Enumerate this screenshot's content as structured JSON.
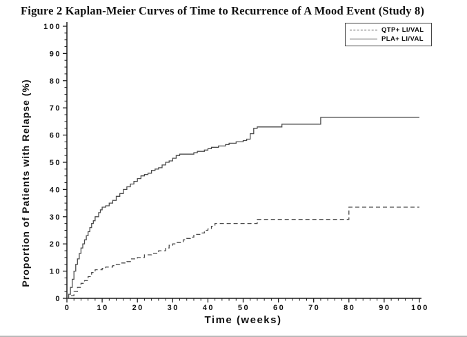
{
  "figure": {
    "title": "Figure 2 Kaplan-Meier Curves of Time to Recurrence of A Mood Event (Study 8)"
  },
  "chart_data": {
    "type": "line",
    "variant": "kaplan_meier_step",
    "title": "Figure 2 Kaplan-Meier Curves of Time to Recurrence of A Mood Event (Study 8)",
    "xlabel": "Time (weeks)",
    "ylabel": "Proportion of Patients with Relapse (%)",
    "xlim": [
      0,
      100
    ],
    "ylim": [
      0,
      100
    ],
    "x_major_ticks": [
      0,
      10,
      20,
      30,
      40,
      50,
      60,
      70,
      80,
      90,
      100
    ],
    "y_major_ticks": [
      0,
      10,
      20,
      30,
      40,
      50,
      60,
      70,
      80,
      90,
      100
    ],
    "x_minor_step": 2,
    "y_minor_step": 2.5,
    "grid": false,
    "background_color": "#ffffff",
    "axis_color": "#1a1a1a",
    "line_color": "#4a4a4a",
    "legend": {
      "position": "top-right",
      "entries": [
        {
          "label": "QTP+ LI/VAL",
          "line_style": "dashed"
        },
        {
          "label": "PLA+ LI/VAL",
          "line_style": "solid"
        }
      ]
    },
    "series": [
      {
        "name": "QTP+ LI/VAL",
        "style": "dashed",
        "step": "after",
        "points": [
          [
            0,
            0
          ],
          [
            1,
            1
          ],
          [
            2,
            2.5
          ],
          [
            3,
            4
          ],
          [
            4,
            5.5
          ],
          [
            5,
            6.5
          ],
          [
            6,
            8
          ],
          [
            7,
            9.5
          ],
          [
            8,
            10.5
          ],
          [
            10,
            11
          ],
          [
            11,
            11.5
          ],
          [
            13,
            12
          ],
          [
            14,
            12.5
          ],
          [
            15,
            13
          ],
          [
            17,
            13.5
          ],
          [
            18,
            14.5
          ],
          [
            20,
            15
          ],
          [
            22,
            16
          ],
          [
            24,
            16.5
          ],
          [
            26,
            17.5
          ],
          [
            28,
            18.5
          ],
          [
            29,
            19.5
          ],
          [
            30,
            20
          ],
          [
            31,
            20.5
          ],
          [
            33,
            21.5
          ],
          [
            34,
            22
          ],
          [
            35,
            22.5
          ],
          [
            36,
            23.5
          ],
          [
            38,
            24
          ],
          [
            39,
            25
          ],
          [
            40,
            25.5
          ],
          [
            41,
            26.5
          ],
          [
            42,
            27.5
          ],
          [
            54,
            29
          ],
          [
            80,
            33.5
          ],
          [
            100,
            33.5
          ]
        ]
      },
      {
        "name": "PLA+ LI/VAL",
        "style": "solid",
        "step": "after",
        "points": [
          [
            0,
            0
          ],
          [
            0.5,
            1.5
          ],
          [
            1,
            4
          ],
          [
            1.5,
            7
          ],
          [
            2,
            10
          ],
          [
            2.5,
            12.5
          ],
          [
            3,
            14.5
          ],
          [
            3.5,
            16.5
          ],
          [
            4,
            18.5
          ],
          [
            4.5,
            20
          ],
          [
            5,
            21.5
          ],
          [
            5.5,
            23
          ],
          [
            6,
            24.5
          ],
          [
            6.5,
            26
          ],
          [
            7,
            27.5
          ],
          [
            7.5,
            28.5
          ],
          [
            8,
            30
          ],
          [
            9,
            31.5
          ],
          [
            9.5,
            32.5
          ],
          [
            10,
            33.5
          ],
          [
            11,
            34
          ],
          [
            12,
            35
          ],
          [
            13,
            36
          ],
          [
            14,
            37.5
          ],
          [
            15,
            38.5
          ],
          [
            16,
            40
          ],
          [
            17,
            41
          ],
          [
            18,
            42
          ],
          [
            19,
            43
          ],
          [
            20,
            44
          ],
          [
            21,
            45
          ],
          [
            22,
            45.5
          ],
          [
            23,
            46
          ],
          [
            24,
            47
          ],
          [
            25,
            47.5
          ],
          [
            26,
            48
          ],
          [
            27,
            49
          ],
          [
            28,
            50
          ],
          [
            29,
            50.5
          ],
          [
            30,
            51.5
          ],
          [
            31,
            52.5
          ],
          [
            32,
            53
          ],
          [
            36,
            53.5
          ],
          [
            37,
            54
          ],
          [
            39,
            54.5
          ],
          [
            40,
            55
          ],
          [
            41,
            55.5
          ],
          [
            43,
            56
          ],
          [
            45,
            56.5
          ],
          [
            46,
            57
          ],
          [
            48,
            57.5
          ],
          [
            50,
            58
          ],
          [
            51,
            58.5
          ],
          [
            52,
            60.5
          ],
          [
            53,
            62.5
          ],
          [
            54,
            63
          ],
          [
            61,
            64
          ],
          [
            72,
            66.5
          ],
          [
            100,
            66.5
          ]
        ]
      }
    ]
  }
}
